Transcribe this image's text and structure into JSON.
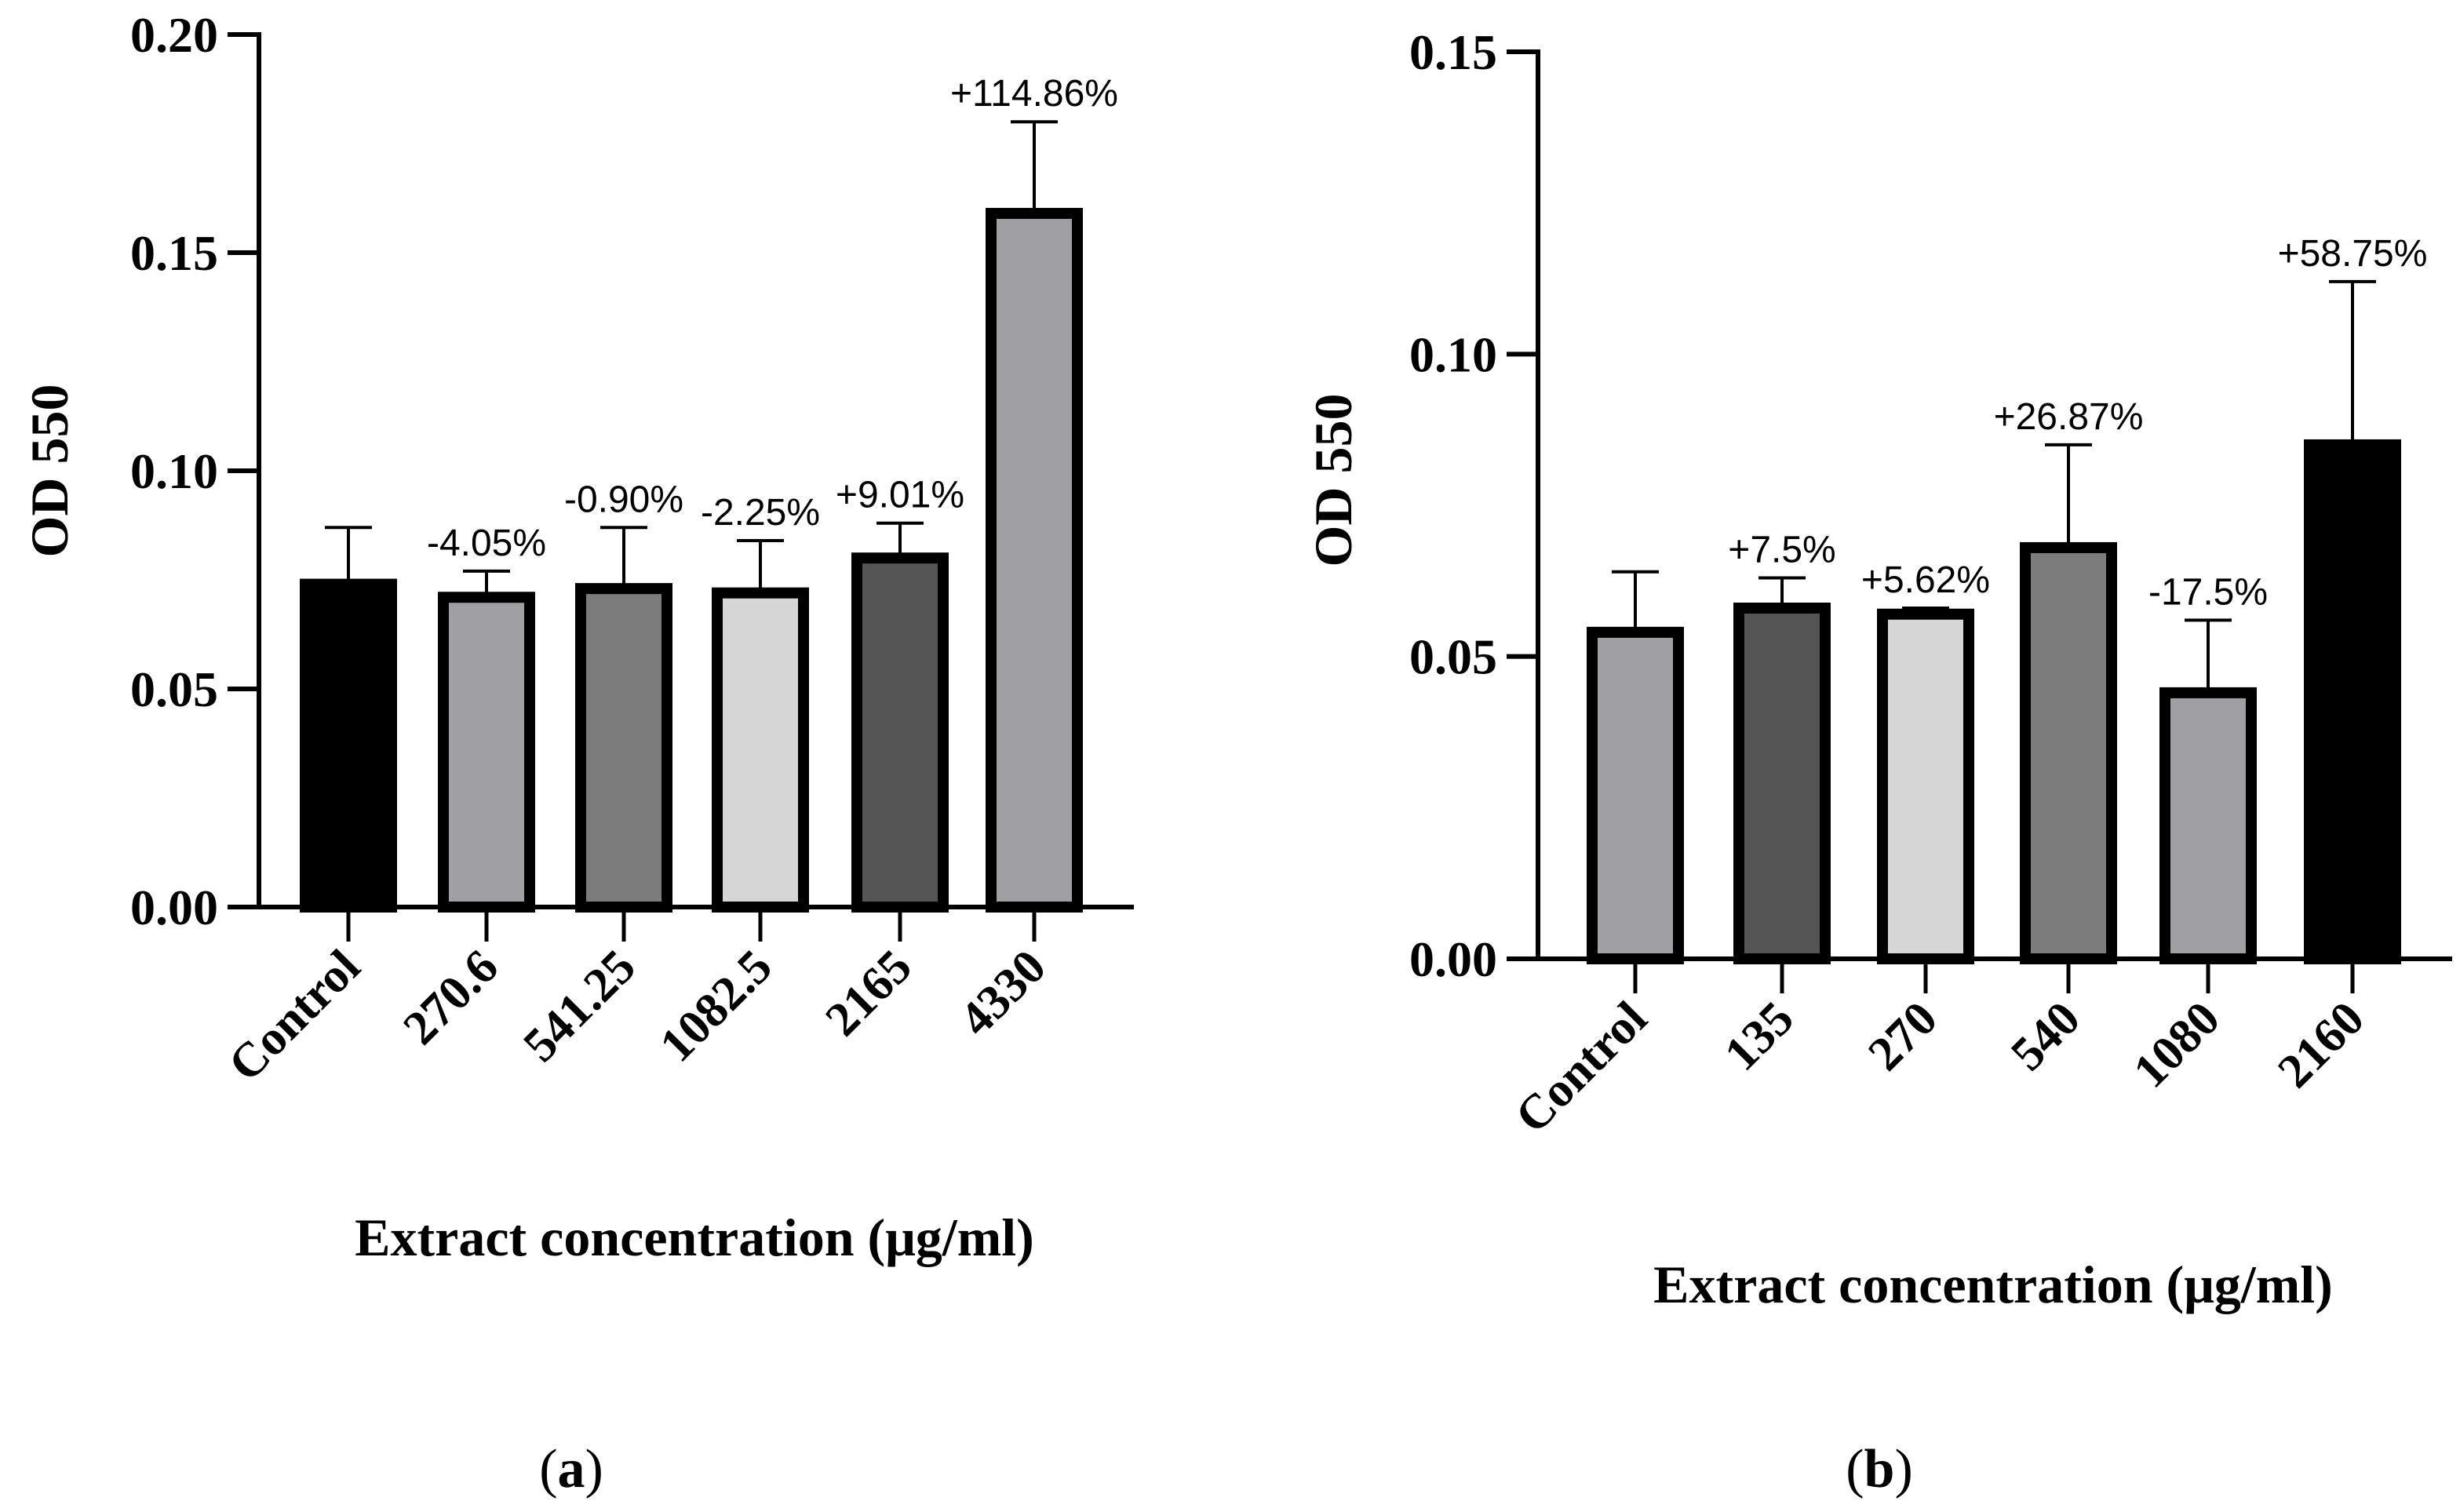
{
  "chart_data": [
    {
      "type": "bar",
      "panel": "a",
      "panel_label": {
        "open": "(",
        "letter": "a",
        "close": ")"
      },
      "categories": [
        "Control",
        "270.6",
        "541.25",
        "1082.5",
        "2165",
        "4330"
      ],
      "values": [
        0.074,
        0.071,
        0.073,
        0.072,
        0.08,
        0.159
      ],
      "errors": [
        0.013,
        0.006,
        0.014,
        0.012,
        0.008,
        0.021
      ],
      "annotations": [
        "",
        "-4.05%",
        "-0.90%",
        "-2.25%",
        "+9.01%",
        "+114.86%"
      ],
      "colors": [
        "#000000",
        "#a0a0a4",
        "#7c7c7c",
        "#d6d6d6",
        "#555555",
        "#a0a0a4"
      ],
      "ylim": [
        0,
        0.2
      ],
      "yticks": [
        "0.00",
        "0.05",
        "0.10",
        "0.15",
        "0.20"
      ],
      "ylabel": "OD 550",
      "xlabel": "Extract concentration (μg/ml)"
    },
    {
      "type": "bar",
      "panel": "b",
      "panel_label": {
        "open": "(",
        "letter": "b",
        "close": ")"
      },
      "categories": [
        "Control",
        "135",
        "270",
        "540",
        "1080",
        "2160"
      ],
      "values": [
        0.054,
        0.058,
        0.057,
        0.068,
        0.044,
        0.085
      ],
      "errors": [
        0.01,
        0.005,
        0.001,
        0.017,
        0.012,
        0.027
      ],
      "annotations": [
        "",
        "+7.5%",
        "+5.62%",
        "+26.87%",
        "-17.5%",
        "+58.75%"
      ],
      "colors": [
        "#a0a0a4",
        "#555555",
        "#d6d6d6",
        "#7c7c7c",
        "#a0a0a4",
        "#000000"
      ],
      "ylim": [
        0,
        0.15
      ],
      "yticks": [
        "0.00",
        "0.05",
        "0.10",
        "0.15"
      ],
      "ylabel": "OD 550",
      "xlabel": "Extract concentration (μg/ml)"
    }
  ]
}
